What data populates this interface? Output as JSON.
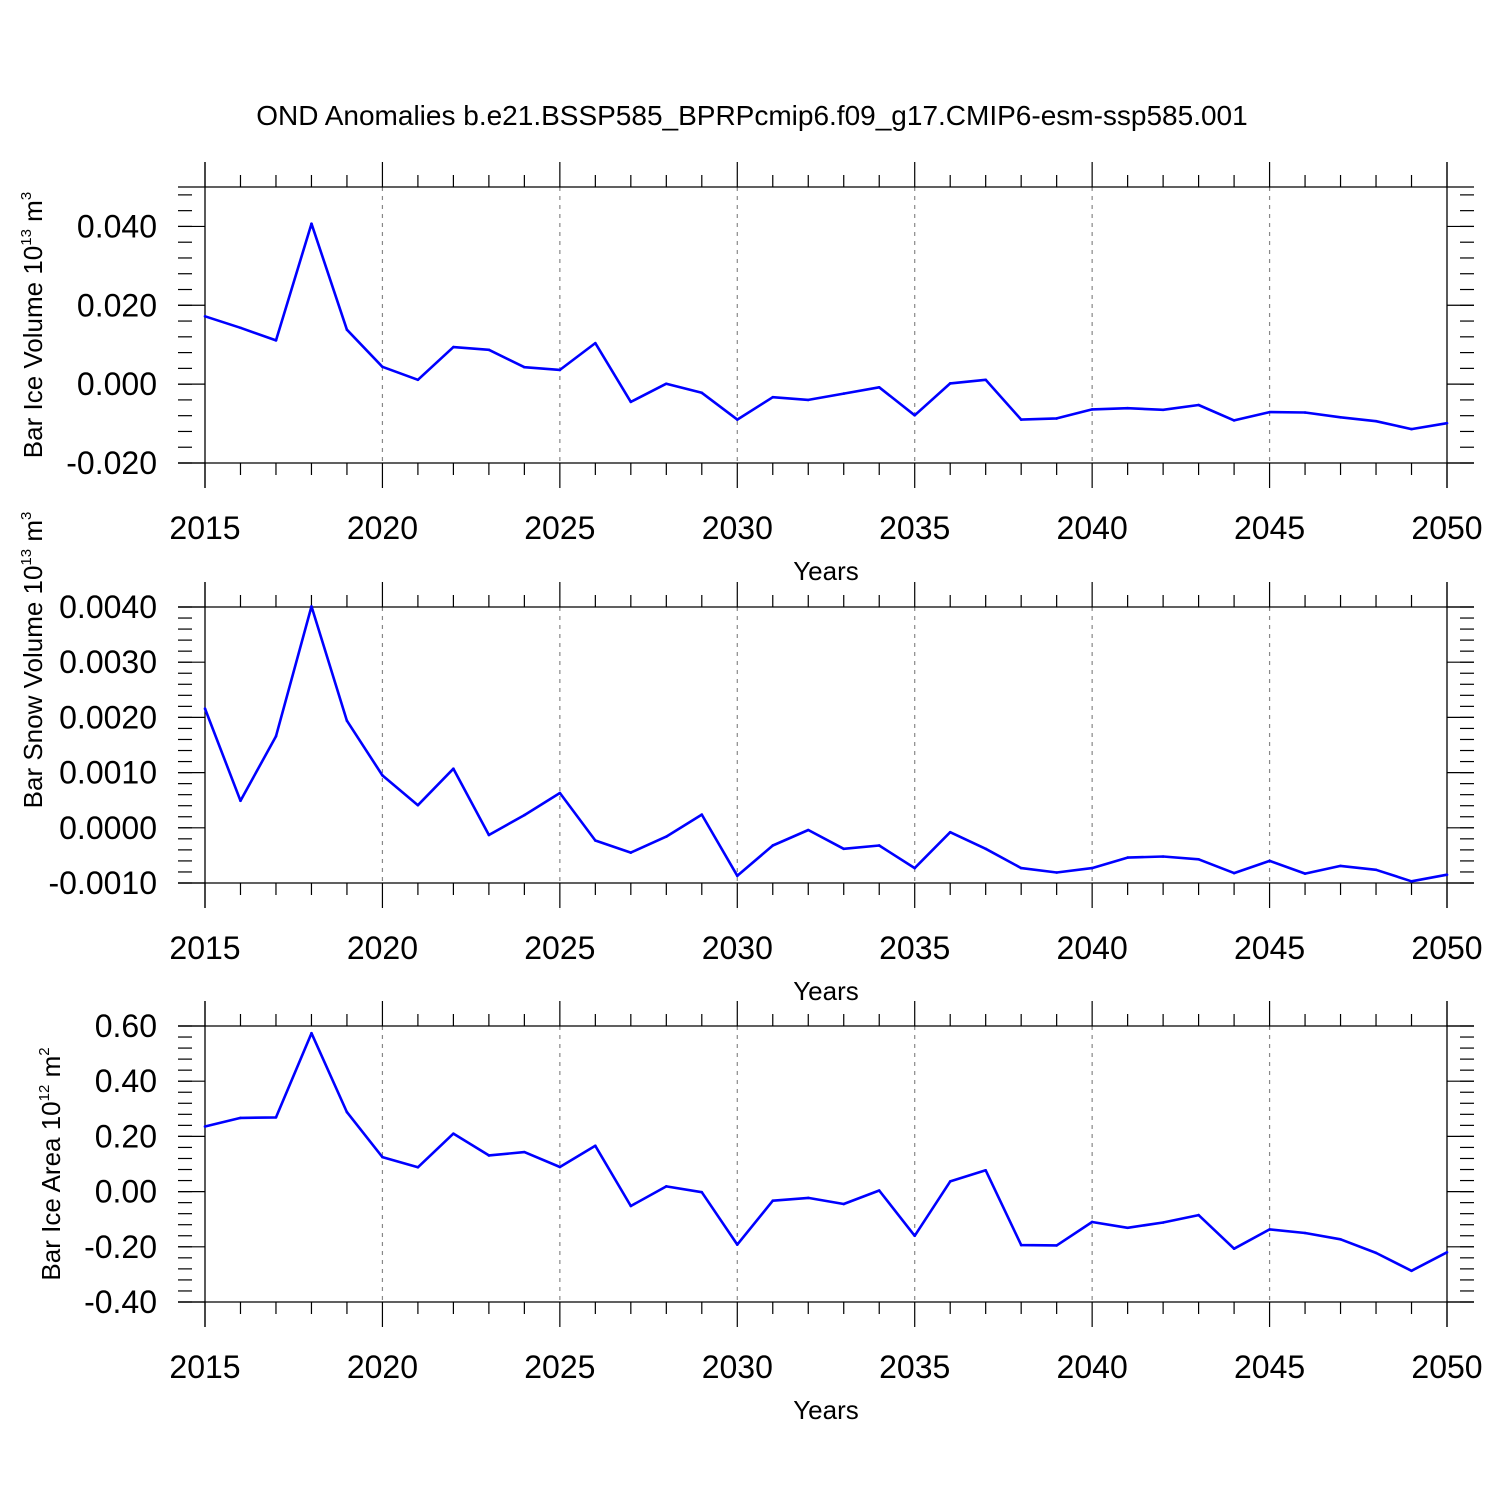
{
  "title": "OND Anomalies b.e21.BSSP585_BPRPcmip6.f09_g17.CMIP6-esm-ssp585.001",
  "colors": {
    "line": "#0000ff",
    "grid": "#888888",
    "axis": "#000000"
  },
  "chart_data": [
    {
      "type": "line",
      "ylabel": {
        "prefix": "Bar Ice Volume 10",
        "exponent": "13",
        "unit": " m",
        "unit_exponent": "3"
      },
      "xlabel": "Years",
      "xlim": [
        2015,
        2050
      ],
      "ylim": [
        -0.02,
        0.05
      ],
      "xticks": [
        2015,
        2020,
        2025,
        2030,
        2035,
        2040,
        2045,
        2050
      ],
      "yticks": [
        -0.02,
        0.0,
        0.02,
        0.04
      ],
      "ytick_labels": [
        "-0.020",
        "0.000",
        "0.020",
        "0.040"
      ],
      "y_minor_step": 0.004,
      "grid": "vertical dashed at major x ticks",
      "x": [
        2015,
        2016,
        2017,
        2018,
        2019,
        2020,
        2021,
        2022,
        2023,
        2024,
        2025,
        2026,
        2027,
        2028,
        2029,
        2030,
        2031,
        2032,
        2033,
        2034,
        2035,
        2036,
        2037,
        2038,
        2039,
        2040,
        2041,
        2042,
        2043,
        2044,
        2045,
        2046,
        2047,
        2048,
        2049,
        2050
      ],
      "values": [
        0.0172,
        0.0143,
        0.0111,
        0.0407,
        0.0138,
        0.0044,
        0.0011,
        0.0094,
        0.0087,
        0.0043,
        0.0036,
        0.0104,
        -0.0045,
        0.0001,
        -0.0022,
        -0.009,
        -0.0033,
        -0.004,
        -0.0024,
        -0.0008,
        -0.0079,
        0.0002,
        0.0011,
        -0.009,
        -0.0087,
        -0.0064,
        -0.0061,
        -0.0065,
        -0.0053,
        -0.0092,
        -0.0071,
        -0.0072,
        -0.0084,
        -0.0094,
        -0.0114,
        -0.0099
      ]
    },
    {
      "type": "line",
      "ylabel": {
        "prefix": "Bar Snow Volume 10",
        "exponent": "13",
        "unit": " m",
        "unit_exponent": "3"
      },
      "xlabel": "Years",
      "xlim": [
        2015,
        2050
      ],
      "ylim": [
        -0.001,
        0.004
      ],
      "xticks": [
        2015,
        2020,
        2025,
        2030,
        2035,
        2040,
        2045,
        2050
      ],
      "yticks": [
        -0.001,
        0.0,
        0.001,
        0.002,
        0.003,
        0.004
      ],
      "ytick_labels": [
        "-0.0010",
        "0.0000",
        "0.0010",
        "0.0020",
        "0.0030",
        "0.0040"
      ],
      "y_minor_step": 0.0002,
      "grid": "vertical dashed at major x ticks",
      "x": [
        2015,
        2016,
        2017,
        2018,
        2019,
        2020,
        2021,
        2022,
        2023,
        2024,
        2025,
        2026,
        2027,
        2028,
        2029,
        2030,
        2031,
        2032,
        2033,
        2034,
        2035,
        2036,
        2037,
        2038,
        2039,
        2040,
        2041,
        2042,
        2043,
        2044,
        2045,
        2046,
        2047,
        2048,
        2049,
        2050
      ],
      "values": [
        0.00216,
        0.00049,
        0.00166,
        0.00401,
        0.00194,
        0.00095,
        0.00041,
        0.00107,
        -0.00013,
        0.00023,
        0.00063,
        -0.00023,
        -0.00045,
        -0.00016,
        0.00024,
        -0.00087,
        -0.00032,
        -4e-05,
        -0.00038,
        -0.00032,
        -0.00073,
        -8e-05,
        -0.00038,
        -0.00073,
        -0.00081,
        -0.00073,
        -0.00054,
        -0.00052,
        -0.00057,
        -0.00082,
        -0.0006,
        -0.00083,
        -0.00069,
        -0.00076,
        -0.00097,
        -0.00085
      ]
    },
    {
      "type": "line",
      "ylabel": {
        "prefix": "Bar Ice Area 10",
        "exponent": "12",
        "unit": " m",
        "unit_exponent": "2"
      },
      "xlabel": "Years",
      "xlim": [
        2015,
        2050
      ],
      "ylim": [
        -0.4,
        0.6
      ],
      "xticks": [
        2015,
        2020,
        2025,
        2030,
        2035,
        2040,
        2045,
        2050
      ],
      "yticks": [
        -0.4,
        -0.2,
        0.0,
        0.2,
        0.4,
        0.6
      ],
      "ytick_labels": [
        "-0.40",
        "-0.20",
        "0.00",
        "0.20",
        "0.40",
        "0.60"
      ],
      "y_minor_step": 0.04,
      "grid": "vertical dashed at major x ticks",
      "x": [
        2015,
        2016,
        2017,
        2018,
        2019,
        2020,
        2021,
        2022,
        2023,
        2024,
        2025,
        2026,
        2027,
        2028,
        2029,
        2030,
        2031,
        2032,
        2033,
        2034,
        2035,
        2036,
        2037,
        2038,
        2039,
        2040,
        2041,
        2042,
        2043,
        2044,
        2045,
        2046,
        2047,
        2048,
        2049,
        2050
      ],
      "values": [
        0.236,
        0.267,
        0.269,
        0.574,
        0.288,
        0.125,
        0.088,
        0.21,
        0.131,
        0.143,
        0.089,
        0.166,
        -0.052,
        0.019,
        -0.002,
        -0.192,
        -0.033,
        -0.023,
        -0.045,
        0.004,
        -0.16,
        0.037,
        0.077,
        -0.194,
        -0.195,
        -0.11,
        -0.131,
        -0.112,
        -0.085,
        -0.207,
        -0.137,
        -0.15,
        -0.173,
        -0.222,
        -0.287,
        -0.22
      ]
    }
  ]
}
